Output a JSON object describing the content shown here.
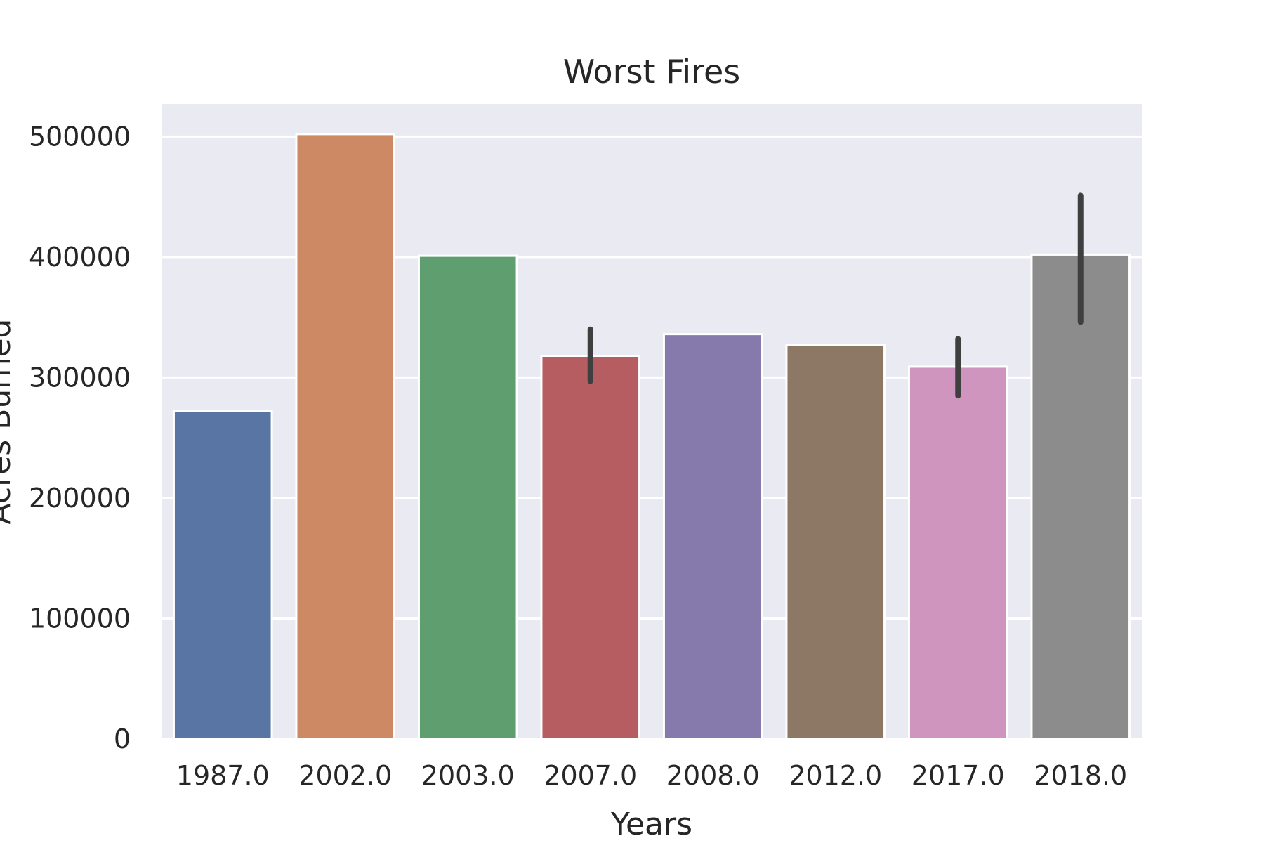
{
  "chart_data": {
    "type": "bar",
    "title": "Worst Fires",
    "xlabel": "Years",
    "ylabel": "Acres Burned",
    "categories": [
      "1987.0",
      "2002.0",
      "2003.0",
      "2007.0",
      "2008.0",
      "2012.0",
      "2017.0",
      "2018.0"
    ],
    "values": [
      272000,
      502000,
      401000,
      318000,
      336000,
      327000,
      309000,
      402000
    ],
    "error_bars": [
      null,
      null,
      null,
      [
        297000,
        340000
      ],
      null,
      null,
      [
        285000,
        332000
      ],
      [
        346000,
        451000
      ]
    ],
    "colors": [
      "#5975a4",
      "#cc8963",
      "#5f9e6e",
      "#b55d60",
      "#857aab",
      "#8d7866",
      "#d095bf",
      "#8c8c8c"
    ],
    "ylim": [
      0,
      527000
    ],
    "yticks": [
      0,
      100000,
      200000,
      300000,
      400000,
      500000
    ],
    "ytick_labels": [
      "0",
      "100000",
      "200000",
      "300000",
      "400000",
      "500000"
    ],
    "grid": true,
    "background": "#eaeaf2",
    "gridColor": "#ffffff",
    "errorColor": "#3f3f3f"
  }
}
